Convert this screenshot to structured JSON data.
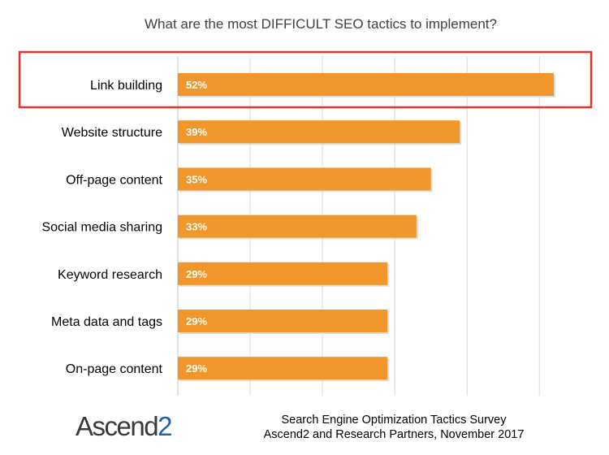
{
  "chart_data": {
    "type": "bar",
    "orientation": "horizontal",
    "title": "What are the most DIFFICULT SEO tactics to implement?",
    "categories": [
      "Link building",
      "Website structure",
      "Off-page content",
      "Social media sharing",
      "Keyword research",
      "Meta data and tags",
      "On-page content"
    ],
    "values": [
      52,
      39,
      35,
      33,
      29,
      29,
      29
    ],
    "data_labels": [
      "52%",
      "39%",
      "35%",
      "33%",
      "29%",
      "29%",
      "29%"
    ],
    "xlim": [
      0,
      55
    ],
    "grid": true,
    "highlighted_category": "Link building",
    "bar_color": "#F0962A",
    "highlight_color": "#E8322A"
  },
  "footer": {
    "logo_main": "Ascend",
    "logo_suffix": "2",
    "source_line1": "Search Engine Optimization Tactics Survey",
    "source_line2": "Ascend2 and Research Partners, November 2017"
  }
}
